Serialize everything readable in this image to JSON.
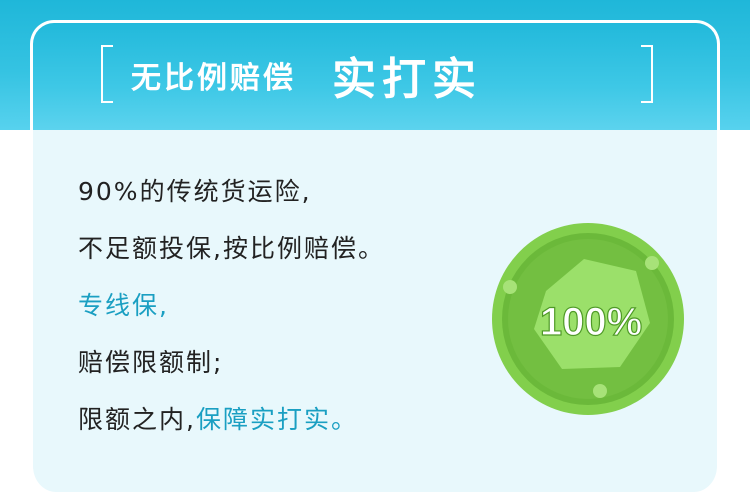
{
  "title": {
    "main": "无比例赔偿",
    "emphasis": "实打实"
  },
  "body": {
    "line1": "90%的传统货运险,",
    "line2": "不足额投保,按比例赔偿。",
    "line3": "专线保,",
    "line4": "赔偿限额制;",
    "line5_normal": "限额之内,",
    "line5_highlight": "保障实打实。"
  },
  "badge": {
    "label": "100%"
  },
  "colors": {
    "header": "#2cbfe0",
    "card": "#e8f8fc",
    "highlight_text": "#1a9fc2",
    "badge_outer": "#82cf4c",
    "badge_inner": "#63b233"
  }
}
